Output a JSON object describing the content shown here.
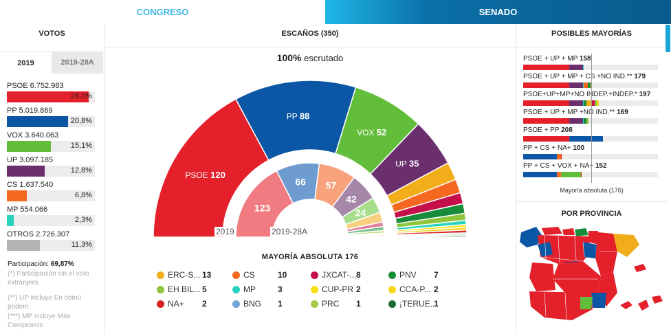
{
  "tabs": {
    "congreso": "CONGRESO",
    "senado": "SENADO"
  },
  "votos": {
    "title": "VOTOS",
    "years": [
      "2019",
      "2019-28A"
    ],
    "rows": [
      {
        "label": "PSOE 6.752.983",
        "pct": "28,0%",
        "share": 0.28,
        "color": "#e4202b"
      },
      {
        "label": "PP 5.019.869",
        "pct": "20,8%",
        "share": 0.208,
        "color": "#0b56a5"
      },
      {
        "label": "VOX 3.640.063",
        "pct": "15,1%",
        "share": 0.151,
        "color": "#62be3a"
      },
      {
        "label": "UP 3.097.185",
        "pct": "12,8%",
        "share": 0.128,
        "color": "#6b2f6e"
      },
      {
        "label": "CS 1.637.540",
        "pct": "6,8%",
        "share": 0.068,
        "color": "#f5681f"
      },
      {
        "label": "MP 554.066",
        "pct": "2,3%",
        "share": 0.023,
        "color": "#28d3c0"
      },
      {
        "label": "OTROS 2.726.307",
        "pct": "11,3%",
        "share": 0.113,
        "color": "#b5b5b5"
      }
    ],
    "participation_label": "Participación:",
    "participation_value": "69,87%",
    "notes": [
      "(*) Participación sin el voto extranjero",
      "(**) UP incluye En comú podem",
      "(***) MP incluye Más Compromís"
    ]
  },
  "escanos": {
    "title": "ESCAÑOS (350)",
    "escrutado_pct": "100%",
    "escrutado_text": "escrutado",
    "year_2019": "2019",
    "year_prev": "2019-28A",
    "mayoria_label": "MAYORÍA ABSOLUTA",
    "mayoria_value": "176"
  },
  "chart_data": [
    {
      "type": "pie",
      "title": "ESCAÑOS (350)",
      "subtitle": "2019",
      "series": [
        {
          "name": "PSOE",
          "value": 120,
          "color": "#e4202b",
          "label": "PSOE"
        },
        {
          "name": "PP",
          "value": 88,
          "color": "#0b56a5",
          "label": "PP"
        },
        {
          "name": "VOX",
          "value": 52,
          "color": "#62be3a",
          "label": "VOX"
        },
        {
          "name": "UP",
          "value": 35,
          "color": "#6b2f6e",
          "label": "UP"
        },
        {
          "name": "ERC-S...",
          "value": 13,
          "color": "#f2ad1a"
        },
        {
          "name": "CS",
          "value": 10,
          "color": "#f5681f"
        },
        {
          "name": "JXCAT-...",
          "value": 8,
          "color": "#c50f4b"
        },
        {
          "name": "PNV",
          "value": 7,
          "color": "#178c3a"
        },
        {
          "name": "EH BIL...",
          "value": 5,
          "color": "#8fc43b"
        },
        {
          "name": "MP",
          "value": 3,
          "color": "#28d3c0"
        },
        {
          "name": "CUP-PR",
          "value": 2,
          "color": "#f7e21a"
        },
        {
          "name": "CCA-P...",
          "value": 2,
          "color": "#f7d51a"
        },
        {
          "name": "NA+",
          "value": 2,
          "color": "#d92121"
        },
        {
          "name": "BNG",
          "value": 1,
          "color": "#73a5d6"
        },
        {
          "name": "PRC",
          "value": 1,
          "color": "#a7c944"
        },
        {
          "name": "¡TERUE...",
          "value": 1,
          "color": "#1b6b3a"
        }
      ]
    },
    {
      "type": "pie",
      "subtitle": "2019-28A",
      "series": [
        {
          "name": "PSOE",
          "value": 123,
          "color": "#f07b80"
        },
        {
          "name": "PP",
          "value": 66,
          "color": "#6e9bd0"
        },
        {
          "name": "CS",
          "value": 57,
          "color": "#f7a27a"
        },
        {
          "name": "UP",
          "value": 42,
          "color": "#a787a8"
        },
        {
          "name": "VOX",
          "value": 24,
          "color": "#a9dd8e"
        },
        {
          "name": "ERC-S...",
          "value": 15,
          "color": "#f8cf80"
        },
        {
          "name": "JXCAT-...",
          "value": 7,
          "color": "#e07e9e"
        },
        {
          "name": "PNV",
          "value": 6,
          "color": "#7fbf8e"
        },
        {
          "name": "EH BIL...",
          "value": 4,
          "color": "#c1e08e"
        },
        {
          "name": "CCA-P...",
          "value": 2,
          "color": "#f9e88a"
        },
        {
          "name": "NA+",
          "value": 2,
          "color": "#ee8a8a"
        },
        {
          "name": "PRC",
          "value": 1,
          "color": "#cfe39a"
        },
        {
          "name": "MP",
          "value": 1,
          "color": "#8ee4d8"
        }
      ]
    },
    {
      "type": "bar",
      "title": "POSIBLES MAYORÍAS",
      "annotation": "Mayoría absoluta (176)",
      "threshold": 176,
      "max": 350,
      "rows": [
        {
          "label": "PSOE + UP + MP",
          "total": "158",
          "segments": [
            {
              "v": 120,
              "c": "#e4202b"
            },
            {
              "v": 35,
              "c": "#6b2f6e"
            },
            {
              "v": 3,
              "c": "#28d3c0"
            }
          ]
        },
        {
          "label": "PSOE + UP + MP + CS +NO IND.**",
          "total": "179",
          "segments": [
            {
              "v": 120,
              "c": "#e4202b"
            },
            {
              "v": 35,
              "c": "#6b2f6e"
            },
            {
              "v": 3,
              "c": "#28d3c0"
            },
            {
              "v": 10,
              "c": "#f5681f"
            },
            {
              "v": 7,
              "c": "#178c3a"
            },
            {
              "v": 4,
              "c": "#f2ad1a"
            }
          ]
        },
        {
          "label": "PSOE+UP+MP+NO INDEP.+INDEP.*",
          "total": "197",
          "segments": [
            {
              "v": 120,
              "c": "#e4202b"
            },
            {
              "v": 35,
              "c": "#6b2f6e"
            },
            {
              "v": 3,
              "c": "#28d3c0"
            },
            {
              "v": 7,
              "c": "#178c3a"
            },
            {
              "v": 13,
              "c": "#f2ad1a"
            },
            {
              "v": 8,
              "c": "#c50f4b"
            },
            {
              "v": 5,
              "c": "#8fc43b"
            },
            {
              "v": 6,
              "c": "#f7d51a"
            }
          ]
        },
        {
          "label": "PSOE + UP + MP +NO IND.**",
          "total": "169",
          "segments": [
            {
              "v": 120,
              "c": "#e4202b"
            },
            {
              "v": 35,
              "c": "#6b2f6e"
            },
            {
              "v": 3,
              "c": "#28d3c0"
            },
            {
              "v": 7,
              "c": "#178c3a"
            },
            {
              "v": 4,
              "c": "#8fc43b"
            }
          ]
        },
        {
          "label": "PSOE + PP",
          "total": "208",
          "segments": [
            {
              "v": 120,
              "c": "#e4202b"
            },
            {
              "v": 88,
              "c": "#0b56a5"
            }
          ]
        },
        {
          "label": "PP + CS + NA+",
          "total": "100",
          "segments": [
            {
              "v": 88,
              "c": "#0b56a5"
            },
            {
              "v": 10,
              "c": "#f5681f"
            },
            {
              "v": 2,
              "c": "#d92121"
            }
          ]
        },
        {
          "label": "PP + CS + VOX + NA+",
          "total": "152",
          "segments": [
            {
              "v": 88,
              "c": "#0b56a5"
            },
            {
              "v": 10,
              "c": "#f5681f"
            },
            {
              "v": 52,
              "c": "#62be3a"
            },
            {
              "v": 2,
              "c": "#d92121"
            }
          ]
        }
      ]
    }
  ],
  "provincia": {
    "title": "POR PROVINCIA"
  }
}
